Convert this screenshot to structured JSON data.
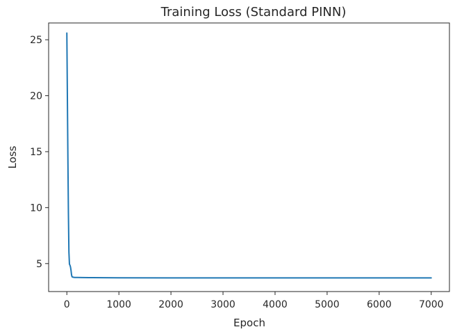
{
  "chart_data": {
    "type": "line",
    "title": "Training Loss (Standard PINN)",
    "xlabel": "Epoch",
    "ylabel": "Loss",
    "xlim": [
      -350,
      7350
    ],
    "ylim": [
      2.5,
      26.5
    ],
    "xticks": [
      0,
      1000,
      2000,
      3000,
      4000,
      5000,
      6000,
      7000
    ],
    "yticks": [
      5,
      10,
      15,
      20,
      25
    ],
    "grid": false,
    "series": [
      {
        "color": "#1f77b4",
        "x": [
          0,
          10,
          20,
          30,
          40,
          50,
          60,
          70,
          80,
          90,
          100,
          120,
          150,
          200,
          300,
          500,
          1000,
          2000,
          3000,
          4000,
          5000,
          6000,
          7000
        ],
        "y": [
          25.6,
          20.0,
          14.5,
          9.5,
          6.0,
          4.95,
          4.85,
          4.7,
          4.4,
          4.0,
          3.82,
          3.78,
          3.76,
          3.76,
          3.75,
          3.74,
          3.73,
          3.72,
          3.72,
          3.72,
          3.72,
          3.72,
          3.72
        ]
      }
    ]
  }
}
